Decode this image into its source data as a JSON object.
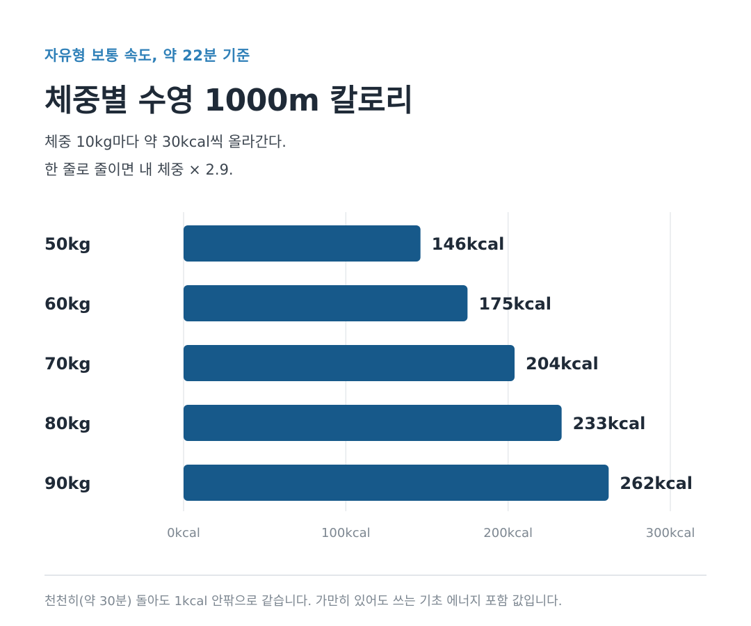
{
  "header": {
    "eyebrow": "자유형 보통 속도, 약 22분 기준",
    "title": "체중별 수영 1000m 칼로리",
    "subtitle_lines": [
      "체중 10kg마다 약 30kcal씩 올라간다.",
      "한 줄로 줄이면 내 체중 × 2.9."
    ]
  },
  "chart_data": {
    "type": "bar",
    "orientation": "horizontal",
    "categories": [
      "50kg",
      "60kg",
      "70kg",
      "80kg",
      "90kg"
    ],
    "values": [
      146,
      175,
      204,
      233,
      262
    ],
    "value_labels": [
      "146kcal",
      "175kcal",
      "204kcal",
      "233kcal",
      "262kcal"
    ],
    "x_ticks": [
      0,
      100,
      200,
      300
    ],
    "x_tick_labels": [
      "0kcal",
      "100kcal",
      "200kcal",
      "300kcal"
    ],
    "xlim": [
      0,
      300
    ],
    "grid": true,
    "bar_color": "#17598a",
    "grid_color": "#e6e9ec"
  },
  "footer": {
    "note": "천천히(약 30분) 돌아도 1kcal 안팎으로 같습니다. 가만히 있어도 쓰는 기초 에너지 포함 값입니다."
  }
}
